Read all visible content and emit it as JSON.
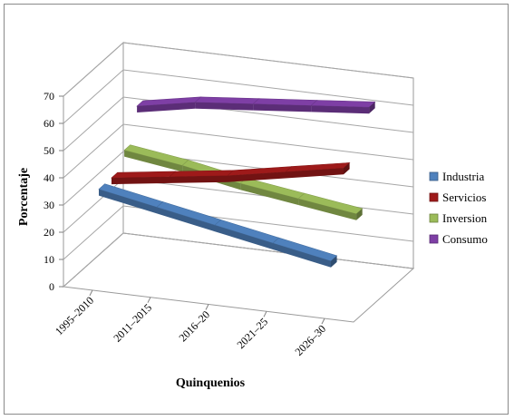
{
  "chart_data": {
    "type": "line",
    "subtype": "3d-ribbon",
    "categories": [
      "1995–2010",
      "2011–2015",
      "2016–20",
      "2021–25",
      "2026–30"
    ],
    "series": [
      {
        "name": "Industria",
        "color": "#4F81BD",
        "values": [
          35,
          31,
          27,
          23,
          19
        ]
      },
      {
        "name": "Servicios",
        "color": "#9E1A1A",
        "values": [
          35,
          38,
          41,
          45,
          49
        ]
      },
      {
        "name": "Inversion",
        "color": "#9BBB59",
        "values": [
          41,
          38,
          34,
          31,
          28
        ]
      },
      {
        "name": "Consumo",
        "color": "#7E3FA5",
        "values": [
          53,
          57,
          59,
          61,
          63
        ]
      }
    ],
    "yticks": [
      0,
      10,
      20,
      30,
      40,
      50,
      60,
      70
    ],
    "ylim": [
      0,
      70
    ],
    "xlabel": "Quinquenios",
    "ylabel": "Porcentaje",
    "legend_position": "right",
    "grid": true
  }
}
